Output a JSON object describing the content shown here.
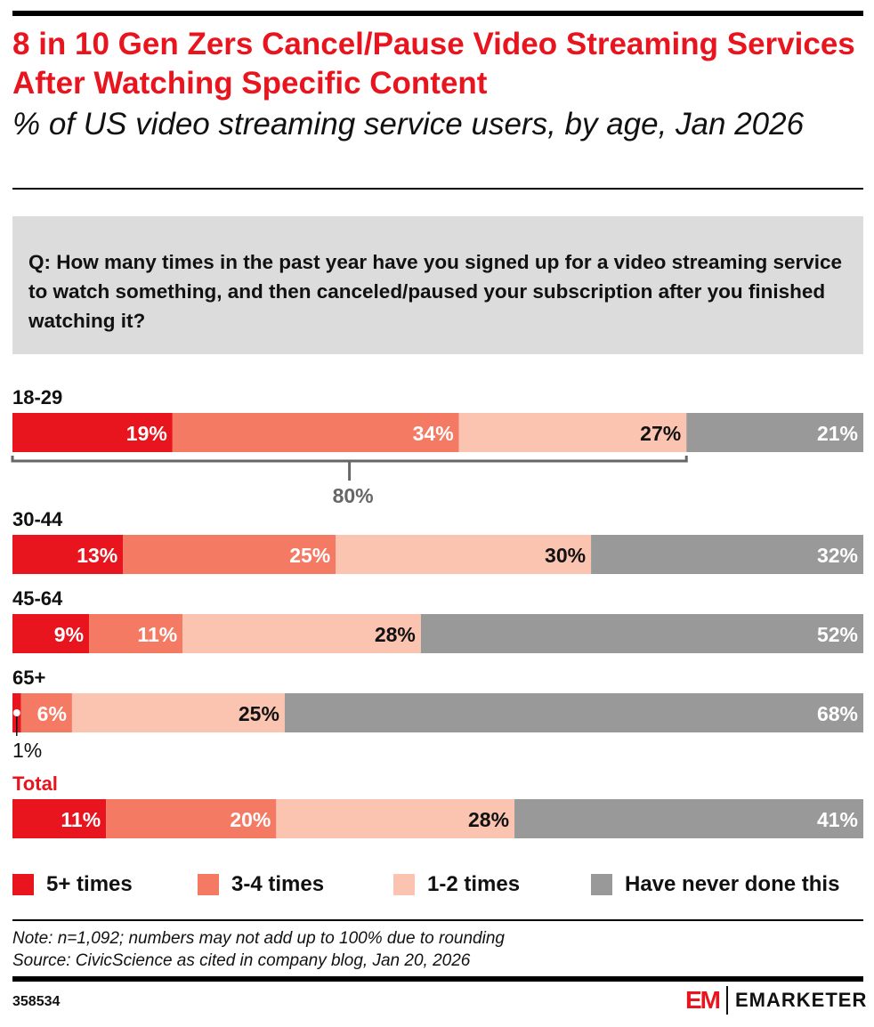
{
  "title": "8 in 10 Gen Zers Cancel/Pause Video Streaming Services After Watching Specific Content",
  "subtitle": "% of US video streaming service users, by age, Jan 2026",
  "question": "Q: How many times in the past year have you signed up for a video streaming service to watch something, and then canceled/paused your subscription after you finished watching it?",
  "note": "Note: n=1,092; numbers may not add up to 100% due to rounding",
  "source": "Source: CivicScience as cited in company blog, Jan 20, 2026",
  "chart_id": "358534",
  "logo": {
    "mark": "EM",
    "brand": "EMARKETER"
  },
  "chart_data": {
    "type": "bar",
    "orientation": "horizontal",
    "stacked": true,
    "categories": [
      "18-29",
      "30-44",
      "45-64",
      "65+",
      "Total"
    ],
    "series": [
      {
        "name": "5+ times",
        "color": "#e8141e",
        "values": [
          19,
          13,
          9,
          1,
          11
        ]
      },
      {
        "name": "3-4 times",
        "color": "#f47a64",
        "values": [
          34,
          25,
          11,
          6,
          20
        ]
      },
      {
        "name": "1-2 times",
        "color": "#fbc4b0",
        "values": [
          27,
          30,
          28,
          25,
          28
        ]
      },
      {
        "name": "Have never done this",
        "color": "#999999",
        "values": [
          21,
          32,
          52,
          68,
          41
        ]
      }
    ],
    "annotations": [
      {
        "category": "18-29",
        "text": "80%",
        "spans_series": [
          "5+ times",
          "3-4 times",
          "1-2 times"
        ]
      }
    ],
    "legend": "bottom",
    "grid": false
  }
}
